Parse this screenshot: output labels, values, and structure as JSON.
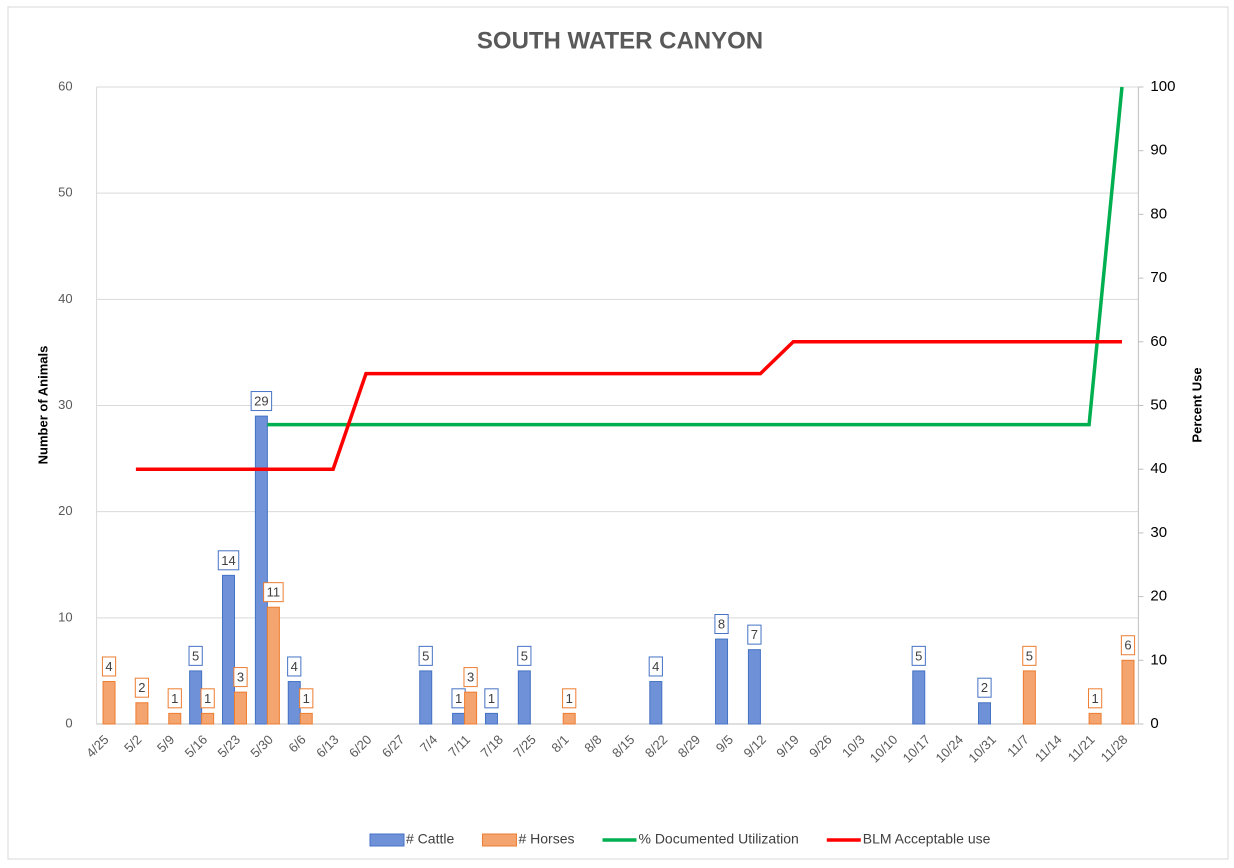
{
  "chart_data": {
    "type": "bar-line",
    "title": "SOUTH WATER CANYON",
    "categories": [
      "4/25",
      "5/2",
      "5/9",
      "5/16",
      "5/23",
      "5/30",
      "6/6",
      "6/13",
      "6/20",
      "6/27",
      "7/4",
      "7/11",
      "7/18",
      "7/25",
      "8/1",
      "8/8",
      "8/15",
      "8/22",
      "8/29",
      "9/5",
      "9/12",
      "9/19",
      "9/26",
      "10/3",
      "10/10",
      "10/17",
      "10/24",
      "10/31",
      "11/7",
      "11/14",
      "11/21",
      "11/28"
    ],
    "series": [
      {
        "name": "# Cattle",
        "type": "bar",
        "color": "#4472c4",
        "values": [
          null,
          null,
          null,
          5,
          14,
          29,
          4,
          null,
          null,
          null,
          5,
          1,
          1,
          5,
          null,
          null,
          null,
          4,
          null,
          8,
          7,
          null,
          null,
          null,
          null,
          5,
          null,
          2,
          null,
          null,
          null,
          null
        ]
      },
      {
        "name": "# Horses",
        "type": "bar",
        "color": "#ed7d31",
        "values": [
          4,
          2,
          1,
          1,
          3,
          11,
          1,
          null,
          null,
          null,
          null,
          3,
          null,
          null,
          1,
          null,
          null,
          null,
          null,
          null,
          null,
          null,
          null,
          null,
          null,
          null,
          null,
          null,
          5,
          null,
          1,
          6
        ]
      },
      {
        "name": "% Documented Utilization",
        "type": "line",
        "axis": "y2",
        "color": "#00b050",
        "values": [
          null,
          null,
          null,
          null,
          null,
          47,
          47,
          47,
          47,
          47,
          47,
          47,
          47,
          47,
          47,
          47,
          47,
          47,
          47,
          47,
          47,
          47,
          47,
          47,
          47,
          47,
          47,
          47,
          47,
          47,
          47,
          100
        ]
      },
      {
        "name": "BLM Acceptable use",
        "type": "line",
        "axis": "y2",
        "color": "#ff0000",
        "values": [
          null,
          40,
          40,
          40,
          40,
          40,
          40,
          40,
          55,
          55,
          55,
          55,
          55,
          55,
          55,
          55,
          55,
          55,
          55,
          55,
          55,
          60,
          60,
          60,
          60,
          60,
          60,
          60,
          60,
          60,
          60,
          60
        ]
      }
    ],
    "ylabel": "Number of Animals",
    "y2label": "Percent Use",
    "ylim": [
      0,
      60
    ],
    "yticks": [
      0,
      10,
      20,
      30,
      40,
      50,
      60
    ],
    "y2lim": [
      0,
      100
    ],
    "y2ticks": [
      0,
      10,
      20,
      30,
      40,
      50,
      60,
      70,
      80,
      90,
      100
    ],
    "grid": true,
    "legend": "bottom"
  }
}
